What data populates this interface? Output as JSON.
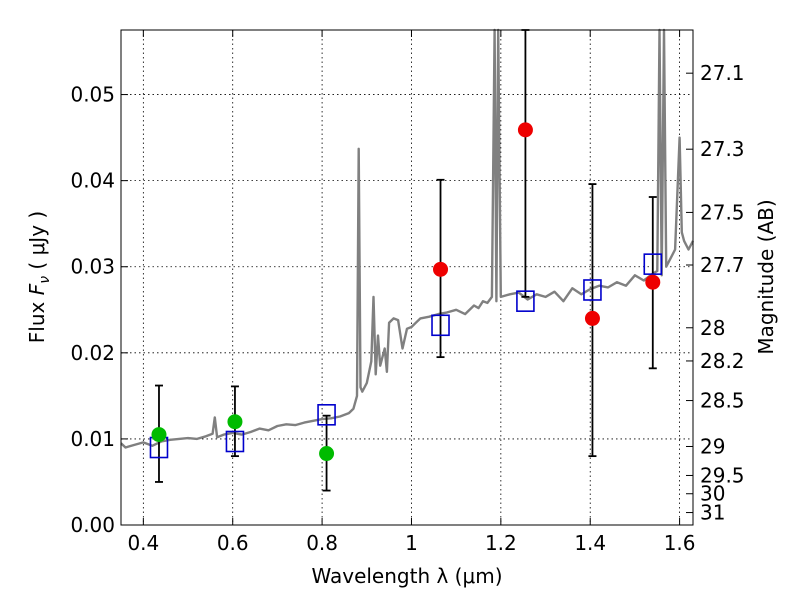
{
  "chart_data": {
    "type": "scatter",
    "xlabel": "Wavelength  λ (μm)",
    "ylabel_prefix": "Flux  ",
    "ylabel_symbol": "F",
    "ylabel_sub": "ν",
    "ylabel_suffix": "  ( μJy )",
    "y2label": "Magnitude (AB)",
    "xlim": [
      0.35,
      1.63
    ],
    "ylim": [
      0.0,
      0.0575
    ],
    "grid": true,
    "x_ticks": [
      {
        "value": 0.4,
        "label": "0.4"
      },
      {
        "value": 0.6,
        "label": "0.6"
      },
      {
        "value": 0.8,
        "label": "0.8"
      },
      {
        "value": 1.0,
        "label": "1"
      },
      {
        "value": 1.2,
        "label": "1.2"
      },
      {
        "value": 1.4,
        "label": "1.4"
      },
      {
        "value": 1.6,
        "label": "1.6"
      }
    ],
    "y_ticks": [
      {
        "value": 0.0,
        "label": "0.00"
      },
      {
        "value": 0.01,
        "label": "0.01"
      },
      {
        "value": 0.02,
        "label": "0.02"
      },
      {
        "value": 0.03,
        "label": "0.03"
      },
      {
        "value": 0.04,
        "label": "0.04"
      },
      {
        "value": 0.05,
        "label": "0.05"
      }
    ],
    "y2_ticks": [
      {
        "value": 27.1,
        "label": "27.1"
      },
      {
        "value": 27.3,
        "label": "27.3"
      },
      {
        "value": 27.5,
        "label": "27.5"
      },
      {
        "value": 27.7,
        "label": "27.7"
      },
      {
        "value": 28.0,
        "label": "28"
      },
      {
        "value": 28.2,
        "label": "28.2"
      },
      {
        "value": 28.5,
        "label": "28.5"
      },
      {
        "value": 29.0,
        "label": "29"
      },
      {
        "value": 29.5,
        "label": "29.5"
      },
      {
        "value": 30.0,
        "label": "30"
      },
      {
        "value": 31.0,
        "label": "31"
      }
    ],
    "series": [
      {
        "kind": "spectrum",
        "color": "#808080",
        "x": [
          0.35,
          0.36,
          0.38,
          0.4,
          0.42,
          0.44,
          0.46,
          0.48,
          0.5,
          0.52,
          0.54,
          0.555,
          0.56,
          0.565,
          0.58,
          0.6,
          0.62,
          0.64,
          0.66,
          0.68,
          0.7,
          0.72,
          0.74,
          0.76,
          0.78,
          0.8,
          0.82,
          0.84,
          0.86,
          0.87,
          0.878,
          0.882,
          0.886,
          0.89,
          0.9,
          0.91,
          0.915,
          0.92,
          0.925,
          0.93,
          0.94,
          0.945,
          0.95,
          0.96,
          0.97,
          0.98,
          0.99,
          1.0,
          1.01,
          1.02,
          1.04,
          1.06,
          1.08,
          1.1,
          1.12,
          1.14,
          1.15,
          1.16,
          1.17,
          1.18,
          1.186,
          1.19,
          1.194,
          1.2,
          1.22,
          1.24,
          1.26,
          1.28,
          1.3,
          1.32,
          1.34,
          1.36,
          1.38,
          1.4,
          1.42,
          1.44,
          1.46,
          1.48,
          1.5,
          1.52,
          1.54,
          1.55,
          1.555,
          1.56,
          1.565,
          1.57,
          1.58,
          1.59,
          1.6,
          1.605,
          1.61,
          1.62,
          1.63
        ],
        "values": [
          0.0095,
          0.009,
          0.0093,
          0.0096,
          0.0092,
          0.0097,
          0.0099,
          0.01,
          0.0101,
          0.01,
          0.0103,
          0.0106,
          0.0125,
          0.0102,
          0.0105,
          0.0107,
          0.0105,
          0.0108,
          0.0112,
          0.011,
          0.0115,
          0.0117,
          0.0116,
          0.0119,
          0.0121,
          0.0123,
          0.0124,
          0.0126,
          0.013,
          0.0135,
          0.015,
          0.0437,
          0.016,
          0.0155,
          0.0165,
          0.019,
          0.0265,
          0.0175,
          0.022,
          0.0185,
          0.0205,
          0.0178,
          0.0235,
          0.024,
          0.0238,
          0.0205,
          0.0228,
          0.023,
          0.0235,
          0.024,
          0.0242,
          0.0245,
          0.0247,
          0.025,
          0.0245,
          0.0255,
          0.0252,
          0.026,
          0.0258,
          0.0265,
          0.0575,
          0.026,
          0.0575,
          0.0265,
          0.0268,
          0.027,
          0.0262,
          0.0268,
          0.0265,
          0.0271,
          0.026,
          0.0275,
          0.0268,
          0.0274,
          0.0278,
          0.0276,
          0.0282,
          0.0278,
          0.029,
          0.0284,
          0.0292,
          0.0295,
          0.0575,
          0.029,
          0.0575,
          0.03,
          0.031,
          0.032,
          0.045,
          0.034,
          0.033,
          0.032,
          0.033
        ]
      },
      {
        "kind": "model",
        "marker": "open-square",
        "color": "#0000cc",
        "x": [
          0.435,
          0.605,
          0.81,
          1.065,
          1.255,
          1.405,
          1.54
        ],
        "values": [
          0.009,
          0.0097,
          0.0128,
          0.0232,
          0.026,
          0.0273,
          0.0303
        ]
      },
      {
        "kind": "observed",
        "marker": "filled-circle",
        "x": [
          0.435,
          0.605,
          0.81,
          1.065,
          1.255,
          1.405,
          1.54
        ],
        "values": [
          0.0105,
          0.012,
          0.0083,
          0.0297,
          0.0459,
          0.024,
          0.0282
        ],
        "err_low": [
          0.005,
          0.008,
          0.004,
          0.0195,
          0.0265,
          0.008,
          0.0182
        ],
        "err_high": [
          0.0162,
          0.0161,
          0.0127,
          0.0401,
          0.0575,
          0.0396,
          0.0381
        ],
        "colors": [
          "#00bb00",
          "#00bb00",
          "#00bb00",
          "#ee0000",
          "#ee0000",
          "#ee0000",
          "#ee0000"
        ]
      }
    ]
  }
}
